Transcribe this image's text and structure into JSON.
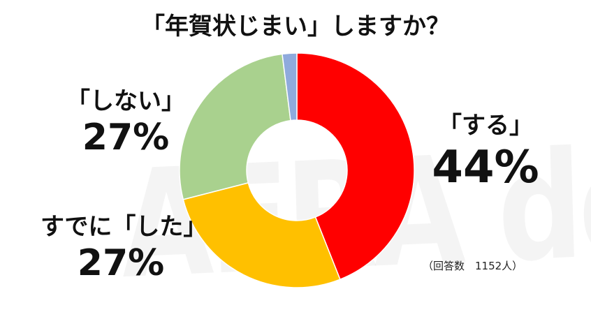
{
  "watermark": "AERA dot.",
  "chart_data": {
    "type": "pie",
    "donut": true,
    "title": "「年賀状じまい」しますか？",
    "slices": [
      {
        "label": "「する」",
        "value": 44,
        "value_label": "44%",
        "color": "#FF0000"
      },
      {
        "label": "すでに「した」",
        "value": 27,
        "value_label": "27%",
        "color": "#FFC000"
      },
      {
        "label": "「しない」",
        "value": 27,
        "value_label": "27%",
        "color": "#A9D18E"
      },
      {
        "label": "",
        "value": 2,
        "value_label": "",
        "color": "#8FAADC"
      }
    ],
    "note": "（回答数　1152人）"
  }
}
